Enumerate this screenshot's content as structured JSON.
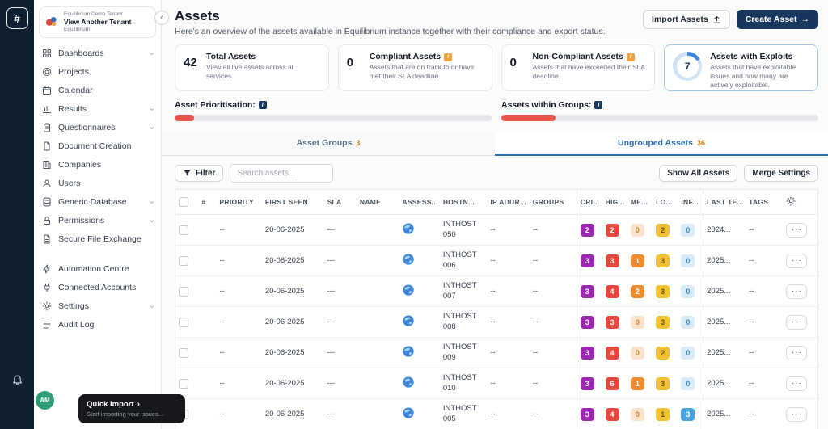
{
  "colors": {
    "accent_navy": "#17375e",
    "tab_active_blue": "#2e6fb0",
    "progress_red": "#e8564a",
    "badge_critical": "#9c27b0",
    "badge_high": "#e5483f",
    "badge_medium": "#f08c2e",
    "badge_low": "#f2c230",
    "badge_info": "#4aa3df",
    "avatar_green": "#2e9e77"
  },
  "rail": {
    "logo": "#"
  },
  "tenant": {
    "name": "Equilibrium Demo Tenant",
    "action": "View Another Tenant",
    "product": "Equilibrium"
  },
  "sidebar": {
    "items": [
      {
        "label": "Dashboards",
        "icon": "dashboard-icon",
        "chevron": true
      },
      {
        "label": "Projects",
        "icon": "projects-icon",
        "chevron": false
      },
      {
        "label": "Calendar",
        "icon": "calendar-icon",
        "chevron": false
      },
      {
        "label": "Results",
        "icon": "results-icon",
        "chevron": true
      },
      {
        "label": "Questionnaires",
        "icon": "questionnaires-icon",
        "chevron": true
      },
      {
        "label": "Document Creation",
        "icon": "document-icon",
        "chevron": false
      },
      {
        "label": "Companies",
        "icon": "companies-icon",
        "chevron": false
      },
      {
        "label": "Users",
        "icon": "users-icon",
        "chevron": false
      },
      {
        "label": "Generic Database",
        "icon": "database-icon",
        "chevron": true
      },
      {
        "label": "Permissions",
        "icon": "lock-icon",
        "chevron": true
      },
      {
        "label": "Secure File Exchange",
        "icon": "file-icon",
        "chevron": false
      },
      {
        "label": "Automation Centre",
        "icon": "automation-icon",
        "chevron": false,
        "section_gap": true
      },
      {
        "label": "Connected Accounts",
        "icon": "plug-icon",
        "chevron": false
      },
      {
        "label": "Settings",
        "icon": "gear-icon",
        "chevron": true
      },
      {
        "label": "Audit Log",
        "icon": "audit-icon",
        "chevron": false
      }
    ],
    "avatar_initials": "AM",
    "quick_import": {
      "title": "Quick Import",
      "subtitle": "Start importing your issues..."
    }
  },
  "header": {
    "title": "Assets",
    "description": "Here's an overview of the assets available in Equilibrium instance together with their compliance and export status.",
    "import_label": "Import Assets",
    "create_label": "Create Asset"
  },
  "stat_cards": [
    {
      "value": "42",
      "title": "Total Assets",
      "description": "View all live assets across all services.",
      "info": false,
      "ring": false
    },
    {
      "value": "0",
      "title": "Compliant Assets",
      "description": "Assets that are on track to or have met their SLA deadline.",
      "info": true,
      "ring": false
    },
    {
      "value": "0",
      "title": "Non-Compliant Assets",
      "description": "Assets that have exceeded their SLA deadline.",
      "info": true,
      "ring": false
    },
    {
      "value": "7",
      "title": "Assets with Exploits",
      "description": "Assets that have exploitable issues and how many are actively exploitable.",
      "info": false,
      "ring": true
    }
  ],
  "progress_bars": [
    {
      "label": "Asset Prioritisation:",
      "percent": 6
    },
    {
      "label": "Assets within Groups:",
      "percent": 17
    }
  ],
  "tabs": [
    {
      "label": "Asset Groups",
      "count": "3",
      "active": false
    },
    {
      "label": "Ungrouped Assets",
      "count": "36",
      "active": true
    }
  ],
  "toolbar": {
    "filter_label": "Filter",
    "search_placeholder": "Search assets...",
    "show_all_label": "Show All Assets",
    "merge_label": "Merge Settings"
  },
  "table": {
    "columns": [
      "#",
      "PRIORITY",
      "FIRST SEEN",
      "SLA",
      "NAME",
      "ASSESS...",
      "HOSTN...",
      "IP ADDR...",
      "GROUPS",
      "CRI...",
      "HIG...",
      "ME...",
      "LO...",
      "INF...",
      "LAST TE...",
      "TAGS"
    ],
    "rows": [
      {
        "num": "",
        "priority": "--",
        "first_seen": "20-06-2025",
        "sla": "---",
        "name": "",
        "hostname": "INTHOST 050",
        "ip": "--",
        "groups": "--",
        "critical": 2,
        "high": 2,
        "medium": 0,
        "low": 2,
        "info": 0,
        "last_tested": "2024...",
        "tags": "--"
      },
      {
        "num": "",
        "priority": "--",
        "first_seen": "20-06-2025",
        "sla": "---",
        "name": "",
        "hostname": "INTHOST 006",
        "ip": "--",
        "groups": "--",
        "critical": 3,
        "high": 3,
        "medium": 1,
        "low": 3,
        "info": 0,
        "last_tested": "2025...",
        "tags": "--"
      },
      {
        "num": "",
        "priority": "--",
        "first_seen": "20-06-2025",
        "sla": "---",
        "name": "",
        "hostname": "INTHOST 007",
        "ip": "--",
        "groups": "--",
        "critical": 3,
        "high": 4,
        "medium": 2,
        "low": 3,
        "info": 0,
        "last_tested": "2025...",
        "tags": "--"
      },
      {
        "num": "",
        "priority": "--",
        "first_seen": "20-06-2025",
        "sla": "---",
        "name": "",
        "hostname": "INTHOST 008",
        "ip": "--",
        "groups": "--",
        "critical": 3,
        "high": 3,
        "medium": 0,
        "low": 3,
        "info": 0,
        "last_tested": "2025...",
        "tags": "--"
      },
      {
        "num": "",
        "priority": "--",
        "first_seen": "20-06-2025",
        "sla": "---",
        "name": "",
        "hostname": "INTHOST 009",
        "ip": "--",
        "groups": "--",
        "critical": 3,
        "high": 4,
        "medium": 0,
        "low": 2,
        "info": 0,
        "last_tested": "2025...",
        "tags": "--"
      },
      {
        "num": "",
        "priority": "--",
        "first_seen": "20-06-2025",
        "sla": "---",
        "name": "",
        "hostname": "INTHOST 010",
        "ip": "--",
        "groups": "--",
        "critical": 3,
        "high": 6,
        "medium": 1,
        "low": 3,
        "info": 0,
        "last_tested": "2025...",
        "tags": "--"
      },
      {
        "num": "",
        "priority": "--",
        "first_seen": "20-06-2025",
        "sla": "---",
        "name": "",
        "hostname": "INTHOST 005",
        "ip": "--",
        "groups": "--",
        "critical": 3,
        "high": 4,
        "medium": 0,
        "low": 1,
        "info": 3,
        "last_tested": "2025...",
        "tags": "--"
      }
    ]
  }
}
